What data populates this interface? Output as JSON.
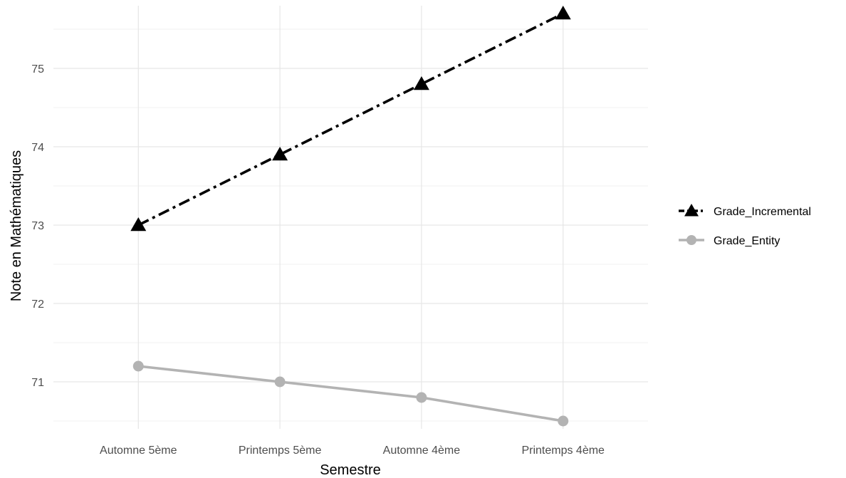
{
  "chart_data": {
    "type": "line",
    "title": "",
    "xlabel": "Semestre",
    "ylabel": "Note en Mathématiques",
    "categories": [
      "Automne 5ème",
      "Printemps 5ème",
      "Automne 4ème",
      "Printemps 4ème"
    ],
    "ylim": [
      70.4,
      75.8
    ],
    "y_ticks": [
      71,
      72,
      73,
      74,
      75
    ],
    "y_tick_labels": [
      "71",
      "72",
      "73",
      "74",
      "75"
    ],
    "grid": true,
    "legend_position": "right",
    "series": [
      {
        "name": "Grade_Incremental",
        "values": [
          73.0,
          73.9,
          74.8,
          75.7
        ],
        "color": "#000000",
        "line_style": "dashed",
        "marker": "triangle"
      },
      {
        "name": "Grade_Entity",
        "values": [
          71.2,
          71.0,
          70.8,
          70.5
        ],
        "color": "#b3b3b3",
        "line_style": "solid",
        "marker": "circle"
      }
    ]
  }
}
